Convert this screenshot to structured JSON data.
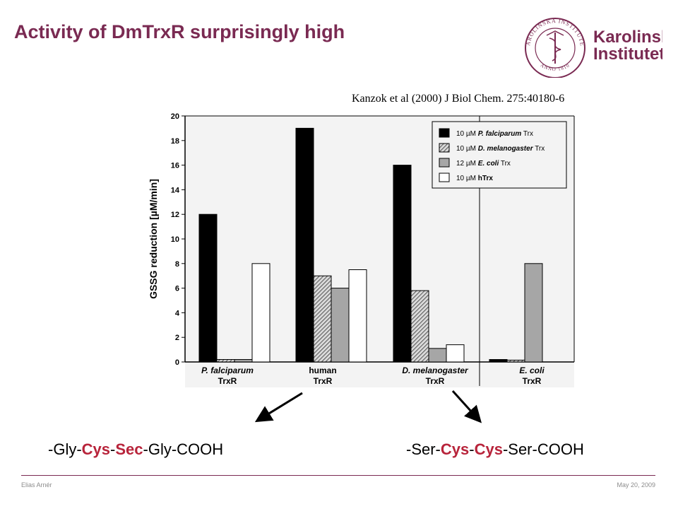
{
  "slide": {
    "title": "Activity of DmTrxR surprisingly high",
    "citation": "Kanzok et al (2000) J Biol Chem. 275:40180-6"
  },
  "logo": {
    "name_line1": "Karolinska",
    "name_line2": "Institutet",
    "seal_text": "KAROLINSKA INSTITUTET",
    "seal_year": "ANNO 1810",
    "color": "#7a2a52"
  },
  "sequences": {
    "left": [
      {
        "text": "-Gly-",
        "highlight": false
      },
      {
        "text": "Cys",
        "highlight": true
      },
      {
        "text": "-",
        "highlight": false
      },
      {
        "text": "Sec",
        "highlight": true
      },
      {
        "text": "-Gly-COOH",
        "highlight": false
      }
    ],
    "right": [
      {
        "text": "-Ser-",
        "highlight": false
      },
      {
        "text": "Cys",
        "highlight": true
      },
      {
        "text": "-",
        "highlight": false
      },
      {
        "text": "Cys",
        "highlight": true
      },
      {
        "text": "-Ser-COOH",
        "highlight": false
      }
    ],
    "highlight_color": "#b8243b"
  },
  "footer": {
    "author": "Elias Arnér",
    "date": "May 20, 2009"
  },
  "chart_data": {
    "type": "bar",
    "ylabel": "GSSG reduction [µM/min]",
    "ylim": [
      0,
      20
    ],
    "yticks": [
      "0",
      "2",
      "4",
      "6",
      "8",
      "10",
      "12",
      "14",
      "16",
      "18",
      "20"
    ],
    "categories": [
      {
        "italic": "P. falciparum",
        "plain": "TrxR"
      },
      {
        "italic": "",
        "plain": "human TrxR"
      },
      {
        "italic": "D. melanogaster",
        "plain": "TrxR"
      },
      {
        "italic": "E. coli",
        "plain": "TrxR"
      }
    ],
    "series": [
      {
        "legend_prefix": "10 µM",
        "legend_bold": "P. falciparum",
        "legend_suffix": "Trx",
        "fill": "black",
        "values": [
          12,
          19,
          16,
          0.2
        ]
      },
      {
        "legend_prefix": "10 µM",
        "legend_bold": "D. melanogaster",
        "legend_suffix": "Trx",
        "fill": "hatch",
        "values": [
          0.2,
          7,
          5.8,
          0.15
        ]
      },
      {
        "legend_prefix": "12 µM",
        "legend_bold": "E. coli",
        "legend_suffix": "Trx",
        "fill": "gray",
        "values": [
          0.2,
          6,
          1.1,
          8
        ]
      },
      {
        "legend_prefix": "10 µM",
        "legend_bold": "hTrx",
        "legend_suffix": "",
        "fill": "white",
        "values": [
          8,
          7.5,
          1.4,
          0
        ]
      }
    ],
    "legend_position": "top-right",
    "divider_after_category": 2,
    "grid": false
  }
}
